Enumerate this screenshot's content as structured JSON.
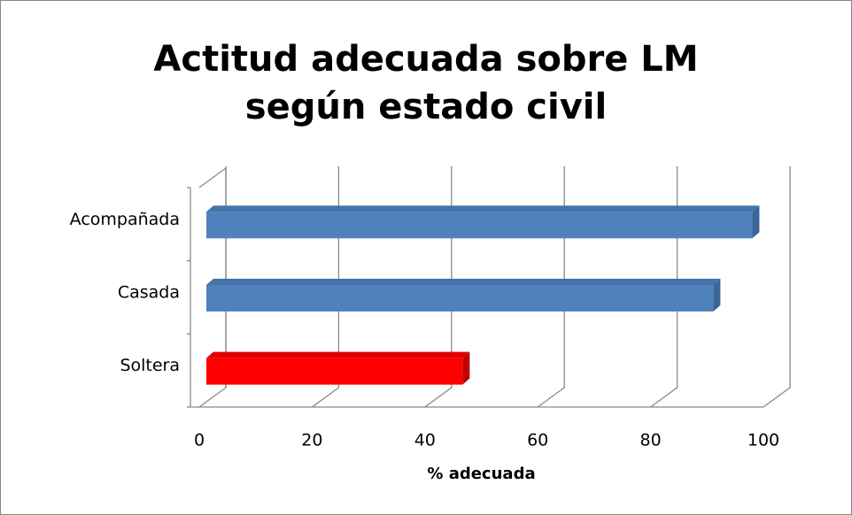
{
  "chart_data": {
    "type": "bar",
    "orientation": "horizontal",
    "title": "Actitud adecuada sobre LM según estado civil",
    "categories": [
      "Acompañada",
      "Casada",
      "Soltera"
    ],
    "values": [
      98,
      91,
      46
    ],
    "colors": [
      "#4f81bd",
      "#4f81bd",
      "#ff0000"
    ],
    "xlabel": "% adecuada",
    "xlim": [
      0,
      100
    ],
    "xticks": [
      0,
      20,
      40,
      60,
      80,
      100
    ],
    "grid": true
  }
}
